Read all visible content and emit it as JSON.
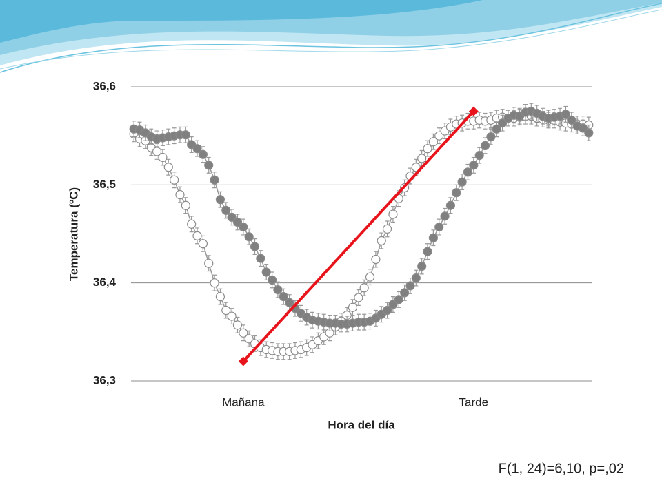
{
  "chart_data": {
    "type": "line",
    "xlabel": "Hora del día",
    "ylabel": "Temperatura (ºC)",
    "annotation": "F(1, 24)=6,10, p=,02",
    "categories": [
      null,
      null,
      null,
      null,
      null,
      null,
      null,
      null,
      null,
      null,
      null,
      null,
      null,
      null,
      null,
      null,
      null,
      null,
      null,
      "Mañana",
      null,
      null,
      null,
      null,
      null,
      null,
      null,
      null,
      null,
      null,
      null,
      null,
      null,
      null,
      null,
      null,
      null,
      null,
      null,
      null,
      null,
      null,
      null,
      null,
      null,
      null,
      null,
      null,
      null,
      null,
      null,
      null,
      null,
      null,
      null,
      null,
      null,
      null,
      null,
      "Tarde",
      null,
      null,
      null,
      null,
      null,
      null,
      null,
      null,
      null,
      null,
      null,
      null,
      null,
      null,
      null,
      null,
      null,
      null,
      null,
      null
    ],
    "ylim": [
      36.3,
      36.6
    ],
    "yticks": [
      {
        "value": 36.3,
        "label": "36,3"
      },
      {
        "value": 36.4,
        "label": "36,4"
      },
      {
        "value": 36.5,
        "label": "36,5"
      },
      {
        "value": 36.6,
        "label": "36,6"
      }
    ],
    "grid": true,
    "series": [
      {
        "color": "#ffffff",
        "error": 0.008,
        "values": [
          36.552,
          36.547,
          36.545,
          36.538,
          36.534,
          36.528,
          36.518,
          36.505,
          36.49,
          36.479,
          36.46,
          36.448,
          36.44,
          36.42,
          36.4,
          36.386,
          36.372,
          36.366,
          36.357,
          36.349,
          36.343,
          36.338,
          36.334,
          36.332,
          36.331,
          36.33,
          36.33,
          36.33,
          36.331,
          36.332,
          36.334,
          36.337,
          36.341,
          36.345,
          36.349,
          36.355,
          36.361,
          36.367,
          36.375,
          36.385,
          36.395,
          36.406,
          36.424,
          36.443,
          36.455,
          36.47,
          36.486,
          36.497,
          36.509,
          36.518,
          36.527,
          36.537,
          36.544,
          36.55,
          36.555,
          36.559,
          36.562,
          36.563,
          36.565,
          36.565,
          36.566,
          36.565,
          36.566,
          36.568,
          36.569,
          36.568,
          36.568,
          36.569,
          36.57,
          36.57,
          36.568,
          36.567,
          36.566,
          36.566,
          36.564,
          36.563,
          36.562,
          36.562,
          36.562,
          36.561
        ]
      },
      {
        "color": "#808080",
        "error": 0.008,
        "values": [
          36.557,
          36.556,
          36.553,
          36.549,
          36.547,
          36.548,
          36.549,
          36.55,
          36.551,
          36.551,
          36.541,
          36.537,
          36.531,
          36.52,
          36.505,
          36.485,
          36.474,
          36.467,
          36.462,
          36.457,
          36.447,
          36.437,
          36.425,
          36.411,
          36.403,
          36.393,
          36.386,
          36.38,
          36.374,
          36.369,
          36.365,
          36.362,
          36.361,
          36.36,
          36.359,
          36.359,
          36.358,
          36.358,
          36.359,
          36.36,
          36.36,
          36.361,
          36.364,
          36.368,
          36.372,
          36.378,
          36.383,
          36.39,
          36.397,
          36.405,
          36.417,
          36.432,
          36.446,
          36.457,
          36.468,
          36.479,
          36.492,
          36.503,
          36.513,
          36.52,
          36.53,
          36.54,
          36.549,
          36.557,
          36.563,
          36.568,
          36.571,
          36.57,
          36.574,
          36.575,
          36.573,
          36.57,
          36.568,
          36.569,
          36.57,
          36.572,
          36.566,
          36.56,
          36.558,
          36.553
        ]
      }
    ],
    "trend": {
      "color": "#e8141c",
      "x": [
        19,
        59
      ],
      "values": [
        36.32,
        36.575
      ]
    }
  }
}
